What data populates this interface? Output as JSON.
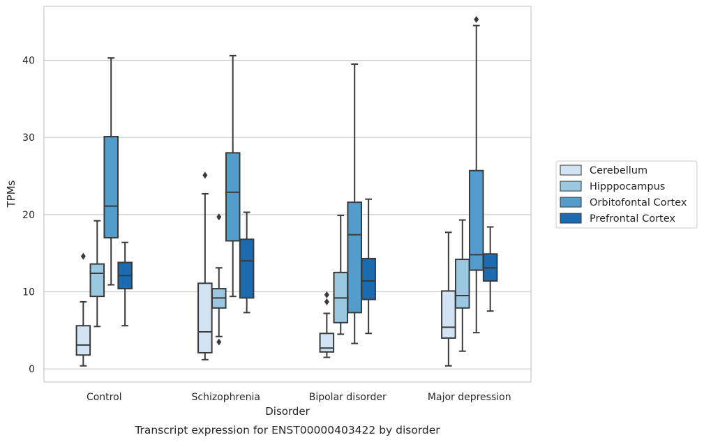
{
  "chart_data": {
    "type": "boxplot",
    "title": "",
    "caption": "Transcript expression for ENST00000403422 by disorder",
    "xlabel": "Disorder",
    "ylabel": "TPMs",
    "ylim": [
      -1.7,
      47
    ],
    "yticks": [
      0,
      10,
      20,
      30,
      40
    ],
    "grid": "horizontal",
    "legend_position": "right",
    "categories": [
      "Control",
      "Schizophrenia",
      "Bipolar disorder",
      "Major depression"
    ],
    "series": [
      {
        "name": "Cerebellum",
        "color": "#d2e3f3",
        "boxes": [
          {
            "whislo": 0.4,
            "q1": 1.8,
            "med": 3.1,
            "q3": 5.6,
            "whishi": 8.7,
            "fliers": [
              14.6
            ]
          },
          {
            "whislo": 1.2,
            "q1": 2.1,
            "med": 4.8,
            "q3": 11.1,
            "whishi": 22.7,
            "fliers": [
              25.1
            ]
          },
          {
            "whislo": 1.5,
            "q1": 2.2,
            "med": 2.7,
            "q3": 4.6,
            "whishi": 7.2,
            "fliers": [
              8.7,
              9.6
            ]
          },
          {
            "whislo": 0.4,
            "q1": 4.0,
            "med": 5.4,
            "q3": 10.1,
            "whishi": 17.7,
            "fliers": []
          }
        ]
      },
      {
        "name": "Hipppocampus",
        "color": "#9ac8e0",
        "boxes": [
          {
            "whislo": 5.5,
            "q1": 9.4,
            "med": 12.4,
            "q3": 13.6,
            "whishi": 19.2,
            "fliers": []
          },
          {
            "whislo": 4.2,
            "q1": 7.9,
            "med": 9.2,
            "q3": 10.4,
            "whishi": 13.1,
            "fliers": [
              3.5,
              19.7
            ]
          },
          {
            "whislo": 4.5,
            "q1": 6.0,
            "med": 9.2,
            "q3": 12.5,
            "whishi": 19.9,
            "fliers": []
          },
          {
            "whislo": 2.3,
            "q1": 7.9,
            "med": 9.5,
            "q3": 14.2,
            "whishi": 19.3,
            "fliers": []
          }
        ]
      },
      {
        "name": "Orbitofontal Cortex",
        "color": "#529dcc",
        "boxes": [
          {
            "whislo": 10.9,
            "q1": 17.0,
            "med": 21.1,
            "q3": 30.1,
            "whishi": 40.3,
            "fliers": []
          },
          {
            "whislo": 9.4,
            "q1": 16.6,
            "med": 22.9,
            "q3": 28.0,
            "whishi": 40.6,
            "fliers": []
          },
          {
            "whislo": 3.3,
            "q1": 7.3,
            "med": 17.4,
            "q3": 21.6,
            "whishi": 39.5,
            "fliers": []
          },
          {
            "whislo": 4.7,
            "q1": 12.8,
            "med": 14.8,
            "q3": 25.7,
            "whishi": 44.5,
            "fliers": [
              45.3
            ]
          }
        ]
      },
      {
        "name": "Prefrontal Cortex",
        "color": "#1c6aaf",
        "boxes": [
          {
            "whislo": 5.6,
            "q1": 10.4,
            "med": 12.1,
            "q3": 13.8,
            "whishi": 16.4,
            "fliers": []
          },
          {
            "whislo": 7.3,
            "q1": 9.2,
            "med": 14.0,
            "q3": 16.8,
            "whishi": 20.3,
            "fliers": []
          },
          {
            "whislo": 4.6,
            "q1": 9.0,
            "med": 11.4,
            "q3": 14.3,
            "whishi": 22.0,
            "fliers": []
          },
          {
            "whislo": 7.5,
            "q1": 11.4,
            "med": 13.1,
            "q3": 14.9,
            "whishi": 18.4,
            "fliers": []
          }
        ]
      }
    ]
  }
}
